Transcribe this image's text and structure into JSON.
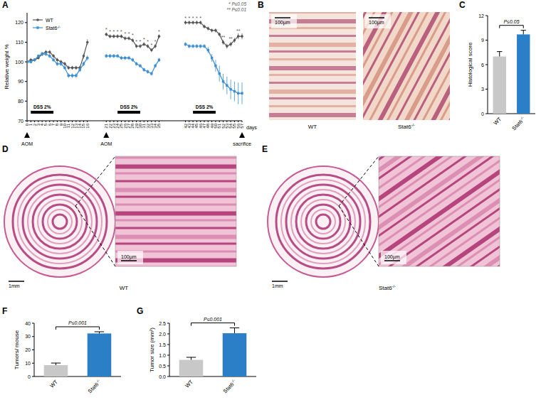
{
  "panel_labels": [
    "A",
    "B",
    "C",
    "D",
    "E",
    "F",
    "G"
  ],
  "chart_data": [
    {
      "type": "line",
      "x_label": "days",
      "y_label": "Relative weight %",
      "x": [
        0,
        1,
        2,
        3,
        4,
        5,
        6,
        7,
        8,
        9,
        10,
        11,
        12,
        13,
        14,
        15,
        16,
        18,
        21,
        22,
        23,
        24,
        25,
        26,
        27,
        28,
        29,
        30,
        31,
        32,
        33,
        34,
        35,
        38,
        42,
        43,
        44,
        45,
        46,
        47,
        48,
        49,
        50,
        51,
        52,
        53,
        54,
        55,
        56,
        57
      ],
      "xlim": [
        0,
        57
      ],
      "xticks": [
        0,
        1,
        2,
        3,
        4,
        5,
        6,
        7,
        8,
        9,
        10,
        11,
        12,
        13,
        14,
        15,
        16,
        21,
        22,
        23,
        24,
        25,
        26,
        27,
        28,
        29,
        30,
        31,
        32,
        33,
        34,
        35,
        42,
        43,
        44,
        45,
        46,
        47,
        48,
        49,
        50,
        51,
        52,
        53,
        54,
        55,
        56,
        57
      ],
      "ylim": [
        70,
        125
      ],
      "yticks": [
        70,
        80,
        90,
        100,
        110,
        120
      ],
      "legend": "upper left",
      "series": [
        {
          "name": "WT",
          "color": "#555555",
          "marker": "circle",
          "values": [
            100,
            101,
            101,
            102,
            104,
            105,
            105,
            103,
            101,
            100,
            99,
            97,
            97,
            97,
            97,
            103,
            110,
            null,
            114,
            113,
            113,
            113,
            113,
            112,
            112,
            111,
            108,
            108,
            109,
            108,
            106,
            108,
            113,
            null,
            120,
            120,
            120,
            120,
            120,
            118,
            117,
            116,
            116,
            114,
            110,
            108,
            109,
            111,
            113,
            113
          ],
          "errors": [
            0.5,
            0.8,
            0.8,
            0.8,
            1,
            1,
            1,
            1,
            1,
            1,
            1,
            1,
            1,
            1,
            1,
            1.2,
            1.5,
            null,
            1,
            1,
            1,
            1,
            1,
            1,
            1,
            1,
            1,
            1,
            1,
            1,
            1,
            1,
            1,
            null,
            1,
            1,
            1,
            1,
            1,
            1,
            1,
            1,
            1,
            1,
            1.2,
            1.2,
            1.2,
            1.2,
            1.5,
            1.5
          ]
        },
        {
          "name": "Stat6-/-",
          "color": "#3d8fd1",
          "marker": "square",
          "values": [
            100,
            100,
            101,
            103,
            104,
            104,
            103,
            101,
            99,
            99,
            97,
            93,
            93,
            93,
            96,
            99,
            102,
            null,
            103,
            103,
            103,
            103,
            102,
            102,
            102,
            101,
            99,
            98,
            96,
            95,
            94,
            98,
            101,
            null,
            109,
            108,
            108,
            108,
            108,
            108,
            106,
            102,
            98,
            94,
            90,
            88,
            86,
            85,
            84,
            84
          ],
          "errors": [
            0.5,
            0.8,
            0.8,
            0.8,
            1,
            1,
            1,
            1,
            1,
            1,
            1,
            1.2,
            1.2,
            1.2,
            1.2,
            1.2,
            1.2,
            null,
            1,
            1,
            1,
            1,
            1,
            1,
            1,
            1,
            1,
            1,
            1,
            1,
            1,
            1,
            1,
            null,
            1,
            1,
            1,
            1,
            1,
            1,
            1.5,
            2,
            3,
            4,
            4,
            4.5,
            5,
            5,
            5.5,
            5.5
          ]
        }
      ],
      "treatments": [
        {
          "label": "DSS 2%",
          "start": 1,
          "end": 7
        },
        {
          "label": "DSS 2%",
          "start": 24,
          "end": 30
        },
        {
          "label": "DSS 2%",
          "start": 44,
          "end": 50
        }
      ],
      "events": [
        {
          "label": "AOM",
          "x": 0
        },
        {
          "label": "AOM",
          "x": 21
        },
        {
          "label": "sacrifice",
          "x": 57
        }
      ],
      "significance": [
        {
          "x": 21,
          "label": "*"
        },
        {
          "x": 22,
          "label": "*"
        },
        {
          "x": 23,
          "label": "*"
        },
        {
          "x": 24,
          "label": "*"
        },
        {
          "x": 25,
          "label": "*"
        },
        {
          "x": 26,
          "label": "*"
        },
        {
          "x": 27,
          "label": "*"
        },
        {
          "x": 28,
          "label": "*"
        },
        {
          "x": 29,
          "label": "*"
        },
        {
          "x": 30,
          "label": "*"
        },
        {
          "x": 31,
          "label": "*"
        },
        {
          "x": 32,
          "label": "*"
        },
        {
          "x": 33,
          "label": "*"
        },
        {
          "x": 34,
          "label": "*"
        },
        {
          "x": 35,
          "label": "*"
        },
        {
          "x": 42,
          "label": "*"
        },
        {
          "x": 43,
          "label": "*"
        },
        {
          "x": 44,
          "label": "*"
        },
        {
          "x": 45,
          "label": "*"
        },
        {
          "x": 46,
          "label": "*"
        },
        {
          "x": 52,
          "label": "**"
        },
        {
          "x": 54,
          "label": "**"
        },
        {
          "x": 56,
          "label": "**"
        }
      ],
      "significance_key": [
        "* P≤0.05",
        "** P≤0.01"
      ]
    },
    {
      "type": "bar",
      "y_label": "Histological score",
      "categories": [
        "WT",
        "Stat6-/-"
      ],
      "values": [
        7.0,
        9.7
      ],
      "errors": [
        0.6,
        0.5
      ],
      "colors": [
        "#c8c8c8",
        "#2b7fc7"
      ],
      "ylim": [
        0,
        12
      ],
      "yticks": [
        0,
        3,
        6,
        9,
        12
      ],
      "significance": "P≤0.05"
    },
    {
      "type": "bar",
      "y_label": "Tumors/ mouse",
      "categories": [
        "WT",
        "Stat6-/-"
      ],
      "values": [
        8.5,
        32.3
      ],
      "errors": [
        1.6,
        1.3
      ],
      "colors": [
        "#c8c8c8",
        "#2b7fc7"
      ],
      "ylim": [
        0,
        40
      ],
      "yticks": [
        0,
        10,
        20,
        30,
        40
      ],
      "significance": "P≤0.001"
    },
    {
      "type": "bar",
      "y_label": "Tumor size (mm²)",
      "categories": [
        "WT",
        "Stat6-/-"
      ],
      "values": [
        0.78,
        2.03
      ],
      "errors": [
        0.12,
        0.25
      ],
      "colors": [
        "#c8c8c8",
        "#2b7fc7"
      ],
      "ylim": [
        0,
        2.5
      ],
      "yticks": [
        {
          "value": 0,
          "label": "0.0"
        },
        0.5,
        {
          "value": 1,
          "label": "1.0"
        },
        1.5,
        {
          "value": 2,
          "label": "2.0"
        },
        2.5
      ],
      "significance": "P≤0.001"
    }
  ],
  "images": [
    {
      "items": [
        {
          "caption": "WT",
          "scale_bar": "100µm"
        },
        {
          "caption": "Stat6-/-",
          "scale_bar": "100µm"
        }
      ]
    },
    {
      "caption": "WT",
      "scale_bar": "1mm",
      "zoom_scale_bar": "100µm"
    },
    {
      "caption": "Stat6-/-",
      "scale_bar": "1mm",
      "zoom_scale_bar": "100µm"
    }
  ]
}
